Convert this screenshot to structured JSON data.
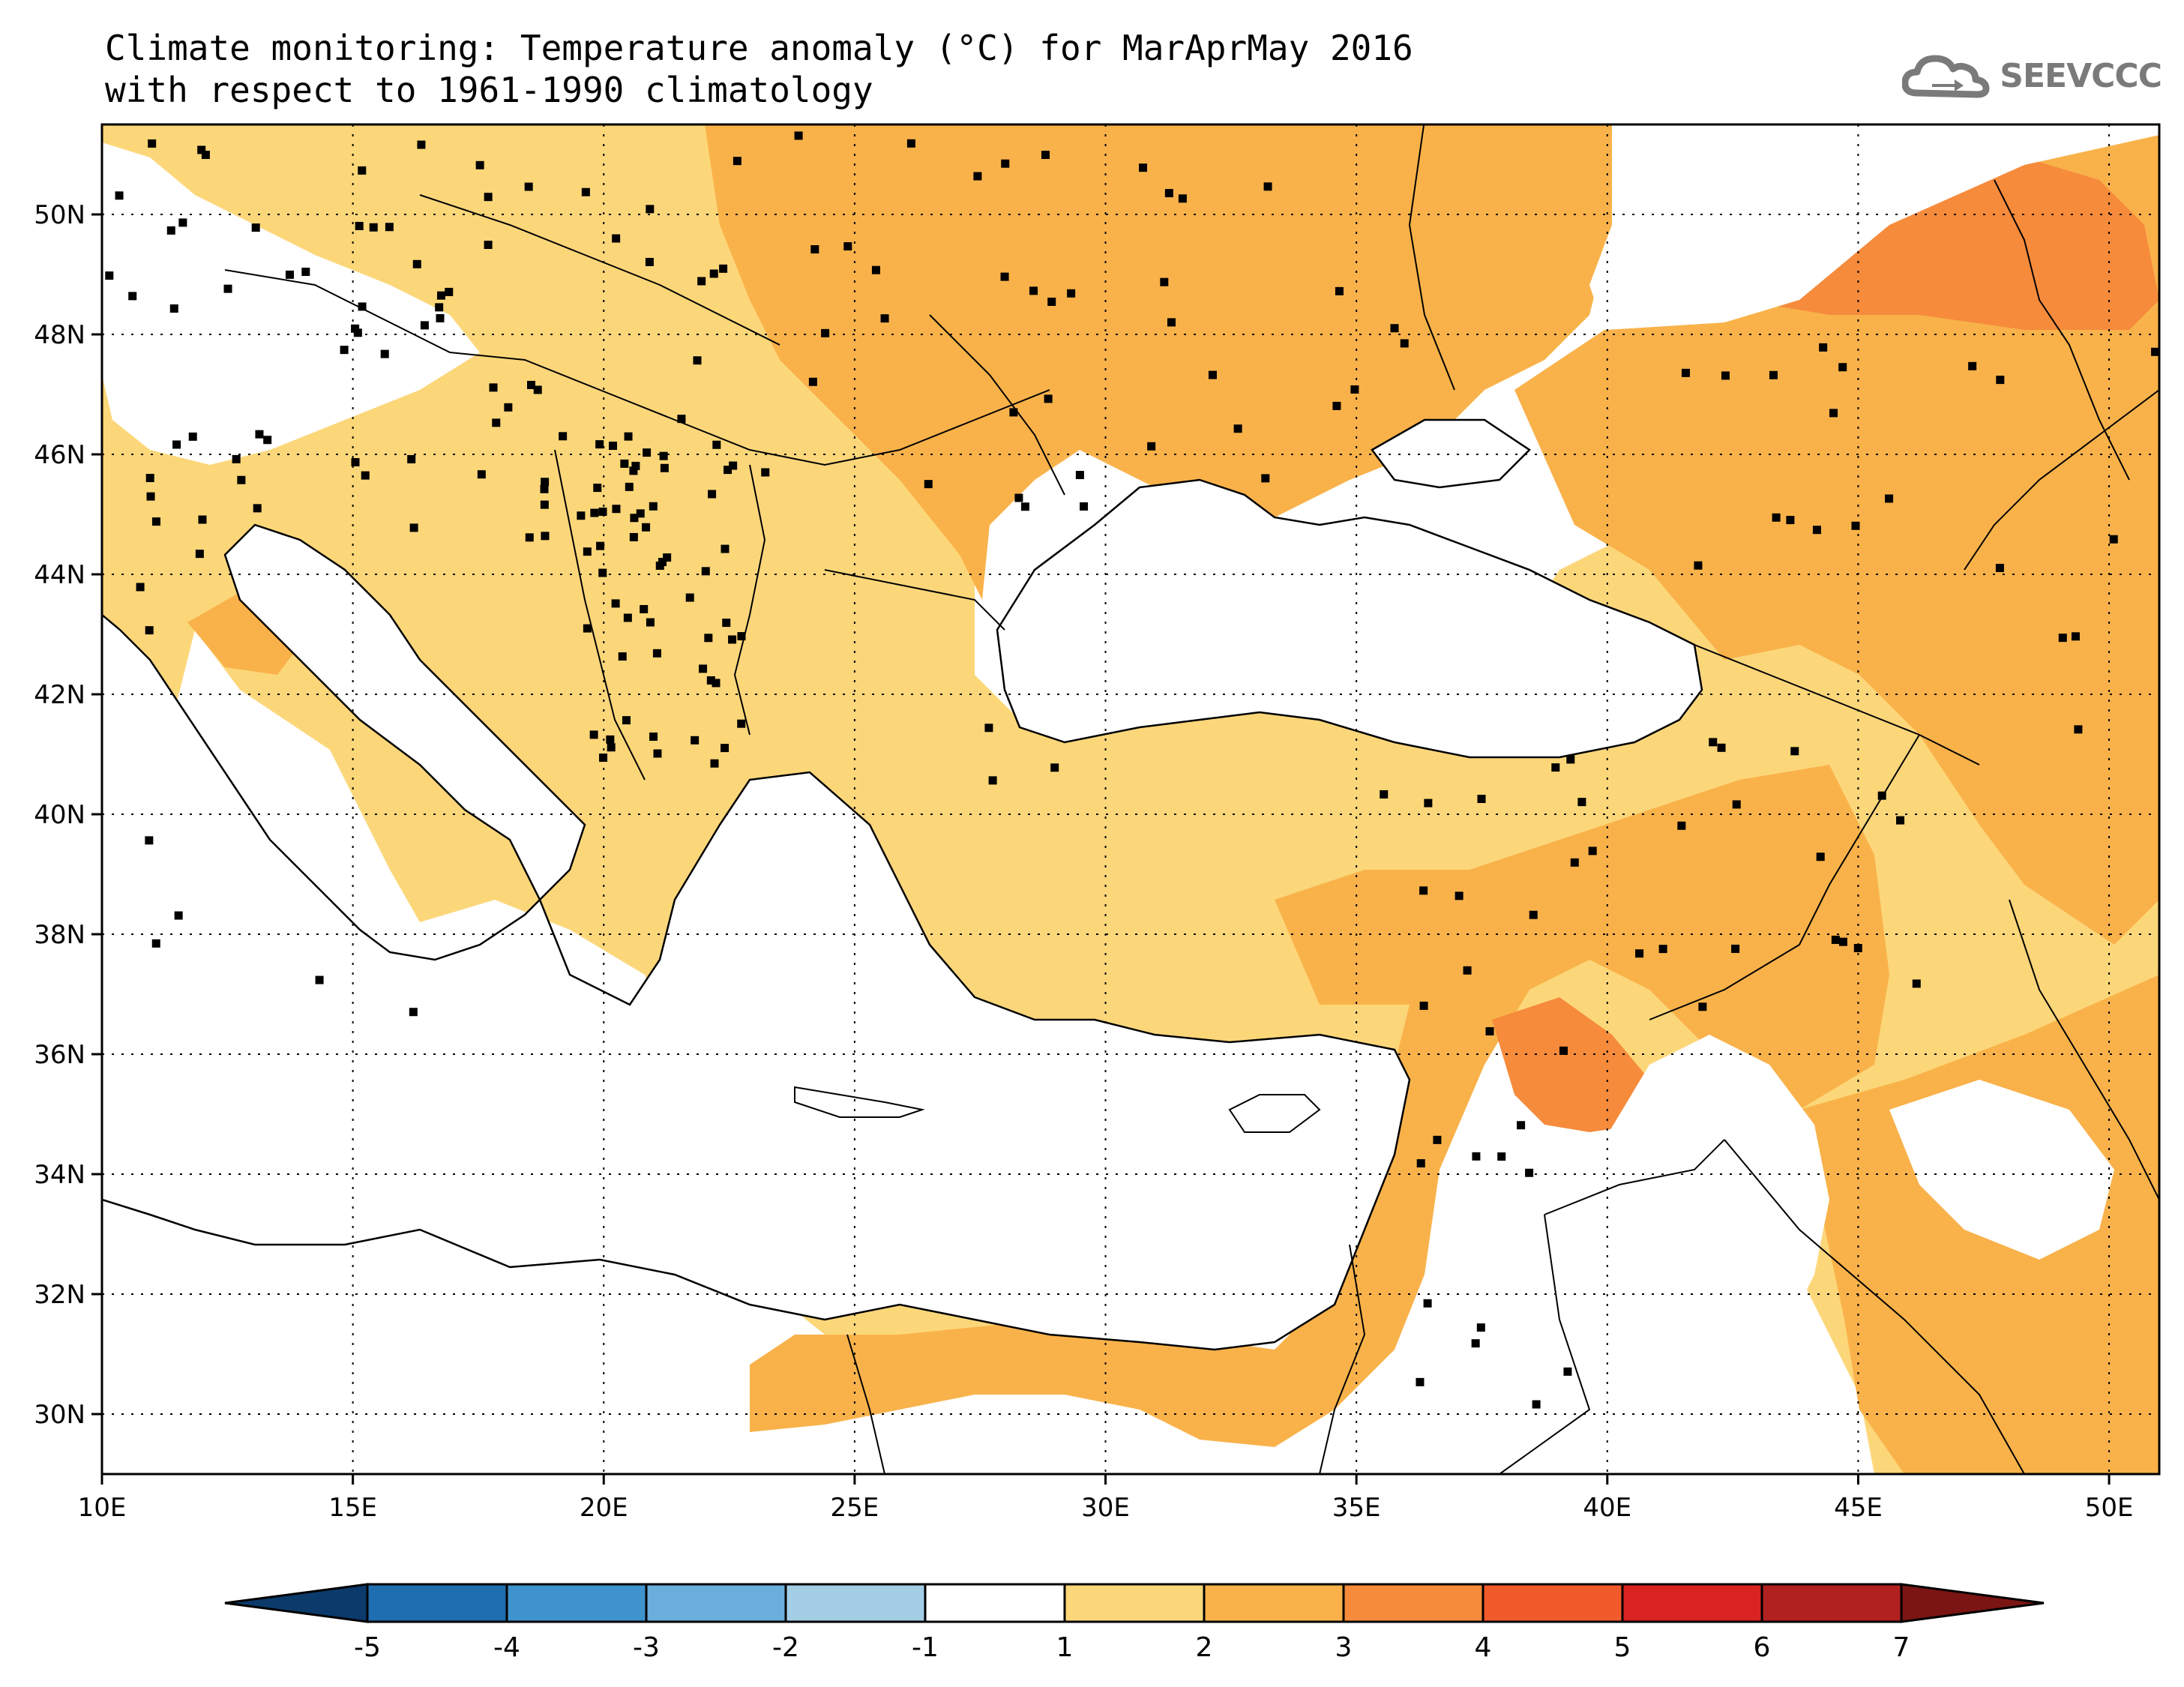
{
  "header": {
    "title_line1": "Climate monitoring: Temperature anomaly (°C) for MarAprMay 2016",
    "title_line2": "with respect to 1961-1990 climatology",
    "logo_text": "SEEVCCC"
  },
  "map": {
    "lat_labels": [
      "50N",
      "48N",
      "46N",
      "44N",
      "42N",
      "40N",
      "38N",
      "36N",
      "34N",
      "32N",
      "30N"
    ],
    "lon_labels": [
      "10E",
      "15E",
      "20E",
      "25E",
      "30E",
      "35E",
      "40E",
      "45E",
      "50E"
    ],
    "lon_range": [
      10,
      51
    ],
    "lat_range": [
      29,
      51.5
    ]
  },
  "colorbar": {
    "tick_labels": [
      "-5",
      "-4",
      "-3",
      "-2",
      "-1",
      "1",
      "2",
      "3",
      "4",
      "5",
      "6",
      "7"
    ],
    "colors": [
      "#0b3a6b",
      "#1f6eb0",
      "#3f93cc",
      "#6aaedb",
      "#a4cde6",
      "#ffffff",
      "#fcd77a",
      "#f9b24a",
      "#f68b3c",
      "#f15a2a",
      "#d92320",
      "#b0211f",
      "#7a1514"
    ]
  },
  "colors": {
    "anomaly_1_2": "#fcd77a",
    "anomaly_2_3": "#f9b24a",
    "anomaly_3_4": "#f68b3c",
    "station": "#000000",
    "border": "#000000"
  }
}
